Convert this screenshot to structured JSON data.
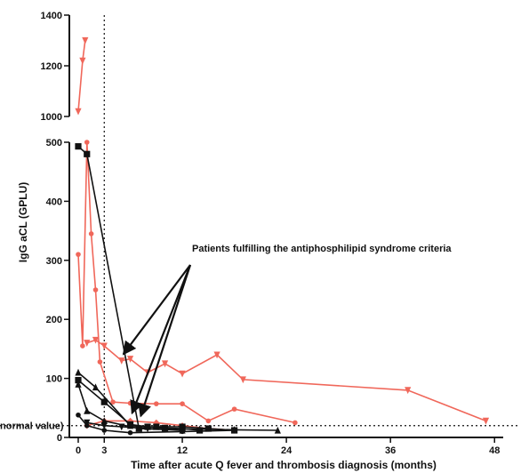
{
  "chart_data": {
    "type": "line",
    "title": "",
    "xlabel": "Time after acute Q fever and thrombosis diagnosis (months)",
    "ylabel": "IgG aCL (GPLU)",
    "xlim": [
      0,
      49
    ],
    "x_ticks": [
      0,
      3,
      12,
      24,
      36,
      48
    ],
    "ylim_lower": [
      0,
      500
    ],
    "ylim_upper": [
      1000,
      1400
    ],
    "y_ticks_lower": [
      0,
      100,
      200,
      300,
      400,
      500
    ],
    "y_ticks_upper": [
      1000,
      1200,
      1400
    ],
    "y_axis_break": true,
    "grid": false,
    "reference_lines": [
      {
        "axis": "x",
        "value": 3,
        "style": "dotted",
        "label": ""
      },
      {
        "axis": "y",
        "value": 20,
        "style": "dotted",
        "label": "normal value)"
      }
    ],
    "annotation": {
      "text": "Patients fulfilling the antiphosphilipid syndrome criteria",
      "target_points": [
        [
          5,
          135
        ],
        [
          6,
          35
        ],
        [
          7,
          30
        ]
      ]
    },
    "colors": {
      "apl": "#f0675a",
      "other": "#111111"
    },
    "series": [
      {
        "group": "apl",
        "marker": "triangle-down",
        "points": [
          [
            0,
            1020
          ],
          [
            0.5,
            1220
          ],
          [
            0.8,
            1300
          ],
          [
            1,
            160
          ],
          [
            2,
            165
          ],
          [
            3,
            155
          ],
          [
            5,
            130
          ],
          [
            6,
            133
          ],
          [
            8,
            110
          ],
          [
            10,
            125
          ],
          [
            12,
            108
          ],
          [
            16,
            140
          ],
          [
            19,
            98
          ],
          [
            38,
            80
          ],
          [
            47,
            28
          ]
        ]
      },
      {
        "group": "apl",
        "marker": "dot",
        "points": [
          [
            0,
            310
          ],
          [
            0.5,
            155
          ],
          [
            1,
            500
          ],
          [
            1.5,
            345
          ],
          [
            2,
            250
          ],
          [
            2.5,
            128
          ],
          [
            4,
            60
          ],
          [
            6,
            58
          ],
          [
            9,
            57
          ],
          [
            12,
            57
          ],
          [
            15,
            28
          ],
          [
            18,
            48
          ],
          [
            25,
            25
          ]
        ]
      },
      {
        "group": "apl",
        "marker": "diamond",
        "points": [
          [
            1,
            20
          ],
          [
            3,
            28
          ],
          [
            6,
            28
          ],
          [
            9,
            25
          ],
          [
            12,
            20
          ],
          [
            15,
            15
          ],
          [
            18,
            12
          ]
        ]
      },
      {
        "group": "other",
        "marker": "square",
        "points": [
          [
            0,
            493
          ],
          [
            1,
            480
          ],
          [
            7,
            15
          ],
          [
            9,
            18
          ],
          [
            12,
            18
          ],
          [
            15,
            15
          ],
          [
            18,
            12
          ]
        ]
      },
      {
        "group": "other",
        "marker": "square",
        "points": [
          [
            0,
            97
          ],
          [
            3,
            60
          ],
          [
            6,
            22
          ],
          [
            8,
            18
          ],
          [
            10,
            16
          ],
          [
            12,
            15
          ],
          [
            14,
            12
          ]
        ]
      },
      {
        "group": "other",
        "marker": "triangle-up",
        "points": [
          [
            0,
            110
          ],
          [
            2,
            85
          ],
          [
            6,
            20
          ],
          [
            10,
            15
          ],
          [
            14,
            14
          ],
          [
            18,
            13
          ],
          [
            23,
            12
          ]
        ]
      },
      {
        "group": "other",
        "marker": "triangle-up",
        "points": [
          [
            0,
            90
          ],
          [
            1,
            45
          ],
          [
            3,
            28
          ],
          [
            7,
            15
          ],
          [
            12,
            12
          ]
        ]
      },
      {
        "group": "other",
        "marker": "dot",
        "points": [
          [
            0,
            38
          ],
          [
            1,
            20
          ],
          [
            3,
            12
          ],
          [
            6,
            8
          ],
          [
            12,
            10
          ],
          [
            18,
            12
          ]
        ]
      },
      {
        "group": "other",
        "marker": "triangle-down",
        "points": [
          [
            1,
            25
          ],
          [
            3,
            20
          ],
          [
            5,
            18
          ],
          [
            8,
            15
          ]
        ]
      }
    ]
  }
}
